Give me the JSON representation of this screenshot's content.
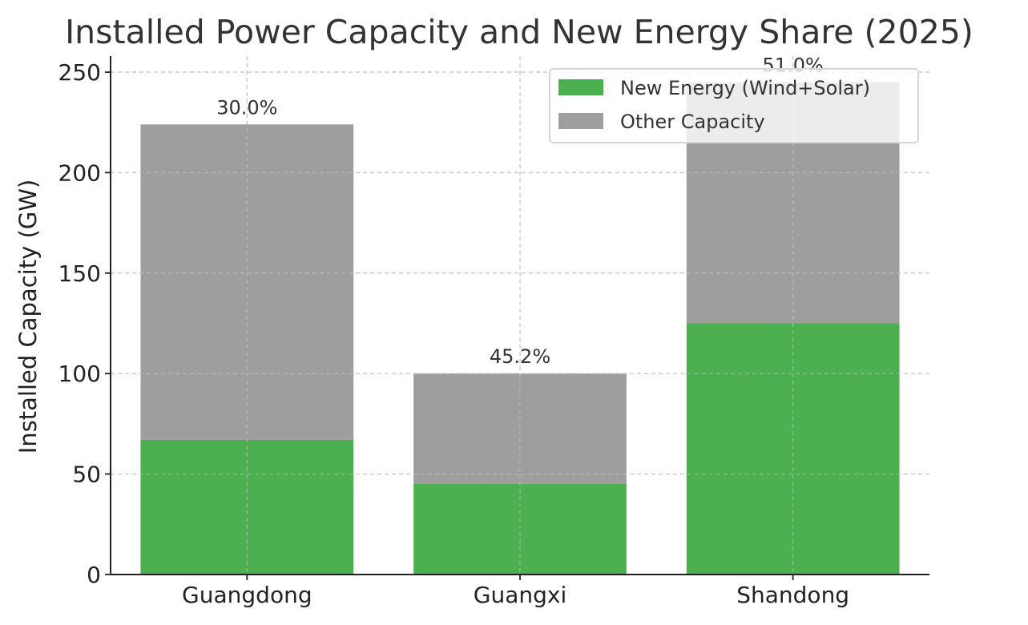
{
  "chart_data": {
    "type": "bar",
    "stacked": true,
    "title": "Installed Power Capacity and New Energy Share (2025)",
    "xlabel": "",
    "ylabel": "Installed Capacity (GW)",
    "ylim": [
      0,
      258
    ],
    "yticks": [
      0,
      50,
      100,
      150,
      200,
      250
    ],
    "grid": true,
    "legend_position": "top-right",
    "categories": [
      "Guangdong",
      "Guangxi",
      "Shandong"
    ],
    "series": [
      {
        "name": "New Energy (Wind+Solar)",
        "color": "#4caf50",
        "values": [
          67,
          45.2,
          125
        ]
      },
      {
        "name": "Other Capacity",
        "color": "#9e9e9e",
        "values": [
          157,
          54.8,
          120
        ]
      }
    ],
    "data_labels": [
      "30.0%",
      "45.2%",
      "51.0%"
    ]
  }
}
